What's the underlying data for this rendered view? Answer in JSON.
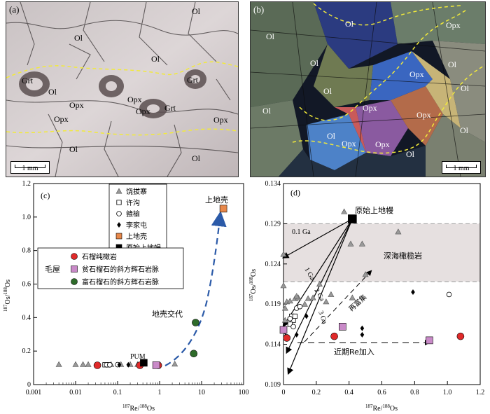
{
  "panel_a": {
    "letter": "(a)",
    "scale": "1 mm",
    "labels": {
      "ol1": "Ol",
      "ol2": "Ol",
      "ol3": "Ol",
      "ol4": "Ol",
      "ol5": "Ol",
      "ol6": "Ol",
      "grt1": "Grt",
      "grt2": "Grt",
      "grt3": "Grt",
      "opx1": "Opx",
      "opx2": "Opx",
      "opx3": "Opx",
      "opx4": "Opx",
      "opx5": "Opx"
    }
  },
  "panel_b": {
    "letter": "(b)",
    "scale": "1 mm",
    "labels": {
      "ol1": "Ol",
      "ol2": "Ol",
      "ol3": "Ol",
      "ol4": "Ol",
      "ol5": "Ol",
      "ol6": "Ol",
      "ol7": "Ol",
      "ol8": "Ol",
      "ol9": "Ol",
      "ol10": "Ol",
      "opx1": "Opx",
      "opx2": "Opx",
      "opx3": "Opx",
      "opx4": "Opx",
      "opx5": "Opx",
      "opx6": "Opx"
    }
  },
  "chart_data": [
    {
      "type": "scatter",
      "panel": "(c)",
      "xscale": "log",
      "xlabel": "187Re/188Os",
      "ylabel": "187Os/188Os",
      "xlim": [
        0.001,
        100
      ],
      "ylim": [
        0,
        1.2
      ],
      "xticks": [
        "0.001",
        "0.01",
        "0.1",
        "1",
        "10",
        "100"
      ],
      "yticks": [
        "0",
        "0.2",
        "0.4",
        "0.6",
        "0.8",
        "1.0",
        "1.2"
      ],
      "legend1": [
        {
          "name": "饶拔寨",
          "marker": "triangle",
          "color": "#999999"
        },
        {
          "name": "许沟",
          "marker": "square-open",
          "color": "#ffffff"
        },
        {
          "name": "赣榆",
          "marker": "circle-open",
          "color": "#ffffff"
        },
        {
          "name": "李家屯",
          "marker": "diamond",
          "color": "#000000"
        },
        {
          "name": "上地壳",
          "marker": "square",
          "color": "#e8884a"
        },
        {
          "name": "原始上地幔",
          "marker": "square",
          "color": "#000000"
        }
      ],
      "legend2_title": "毛屋",
      "legend2": [
        {
          "name": "石榴纯橄岩",
          "marker": "circle",
          "color": "#e02a2a"
        },
        {
          "name": "贫石榴石的斜方辉石岩脉",
          "marker": "square",
          "color": "#c98ac8"
        },
        {
          "name": "富石榴石的斜方辉石岩脉",
          "marker": "circle",
          "color": "#2e6b2a"
        }
      ],
      "annotations": [
        "上地壳",
        "地壳交代",
        "PUM"
      ],
      "series": [
        {
          "name": "饶拔寨",
          "points": [
            [
              0.004,
              0.12
            ],
            [
              0.01,
              0.12
            ],
            [
              0.015,
              0.12
            ],
            [
              0.02,
              0.12
            ],
            [
              0.07,
              0.12
            ],
            [
              0.12,
              0.12
            ],
            [
              0.2,
              0.12
            ],
            [
              0.3,
              0.12
            ],
            [
              2.3,
              0.123
            ]
          ]
        },
        {
          "name": "许沟",
          "points": [
            [
              0.05,
              0.118
            ],
            [
              0.06,
              0.118
            ]
          ]
        },
        {
          "name": "赣榆",
          "points": [
            [
              0.055,
              0.118
            ],
            [
              0.065,
              0.118
            ],
            [
              0.1,
              0.119
            ]
          ]
        },
        {
          "name": "李家屯",
          "points": [
            [
              0.11,
              0.118
            ],
            [
              0.18,
              0.118
            ]
          ]
        },
        {
          "name": "石榴纯橄岩",
          "points": [
            [
              0.033,
              0.115
            ],
            [
              0.34,
              0.115
            ],
            [
              0.93,
              0.115
            ]
          ]
        },
        {
          "name": "贫石榴石的斜方辉石岩脉",
          "points": [
            [
              0.83,
              0.116
            ]
          ]
        },
        {
          "name": "富石榴石的斜方辉石岩脉",
          "points": [
            [
              6.5,
              0.185
            ],
            [
              7.2,
              0.37
            ]
          ]
        },
        {
          "name": "上地壳",
          "points": [
            [
              33,
              1.05
            ]
          ]
        },
        {
          "name": "原始上地幔",
          "points": [
            [
              0.42,
              0.13
            ]
          ]
        }
      ]
    },
    {
      "type": "scatter",
      "panel": "(d)",
      "xlabel": "187Re/188Os",
      "ylabel": "187Os/188Os",
      "xlim": [
        0,
        1.2
      ],
      "ylim": [
        0.109,
        0.134
      ],
      "xticks": [
        "0",
        "0.2",
        "0.4",
        "0.6",
        "0.8",
        "1.0",
        "1.2"
      ],
      "yticks": [
        "0.109",
        "0.114",
        "0.119",
        "0.124",
        "0.129",
        "0.134"
      ],
      "band_label": "深海橄榄岩",
      "band": [
        0.1218,
        0.129
      ],
      "isochrons": [
        "0.1 Ga",
        "1 Ga",
        "2 Ga",
        "3 Ga"
      ],
      "annotations": [
        "原始上地幔",
        "再富集",
        "近期Re加入"
      ],
      "series": [
        {
          "name": "饶拔寨",
          "points": [
            [
              0.37,
              0.1305
            ],
            [
              0.7,
              0.128
            ],
            [
              0.0,
              0.1252
            ],
            [
              0.48,
              0.1265
            ],
            [
              0.41,
              0.1265
            ],
            [
              0.5,
              0.1227
            ],
            [
              0.22,
              0.1215
            ],
            [
              0.0,
              0.1213
            ],
            [
              0.02,
              0.1193
            ],
            [
              0.04,
              0.1194
            ],
            [
              0.07,
              0.1197
            ],
            [
              0.09,
              0.1198
            ],
            [
              0.01,
              0.117
            ],
            [
              0.13,
              0.119
            ],
            [
              0.15,
              0.1197
            ],
            [
              0.18,
              0.1198
            ],
            [
              0.42,
              0.1198
            ],
            [
              0.01,
              0.1185
            ],
            [
              0.26,
              0.1193
            ],
            [
              0.29,
              0.1202
            ],
            [
              0.08,
              0.12
            ]
          ]
        },
        {
          "name": "许沟",
          "points": [
            [
              0.05,
              0.1175
            ],
            [
              0.06,
              0.117
            ],
            [
              0.04,
              0.1165
            ],
            [
              0.07,
              0.1175
            ]
          ]
        },
        {
          "name": "赣榆",
          "points": [
            [
              0.08,
              0.1185
            ],
            [
              0.1,
              0.1187
            ],
            [
              0.04,
              0.1172
            ],
            [
              1.01,
              0.1202
            ],
            [
              0.06,
              0.1162
            ]
          ]
        },
        {
          "name": "李家屯",
          "points": [
            [
              0.79,
              0.1205
            ],
            [
              0.14,
              0.1175
            ],
            [
              0.48,
              0.116
            ],
            [
              0.48,
              0.1152
            ],
            [
              0.01,
              0.1155
            ],
            [
              0.08,
              0.1152
            ]
          ]
        },
        {
          "name": "石榴纯橄岩",
          "points": [
            [
              0.02,
              0.1148
            ],
            [
              0.31,
              0.115
            ],
            [
              1.08,
              0.115
            ]
          ]
        },
        {
          "name": "贫石榴石的斜方辉石岩脉",
          "points": [
            [
              0.0,
              0.1158
            ],
            [
              0.36,
              0.1162
            ],
            [
              0.89,
              0.1145
            ]
          ]
        },
        {
          "name": "原始上地幔",
          "points": [
            [
              0.42,
              0.1296
            ]
          ]
        }
      ]
    }
  ]
}
